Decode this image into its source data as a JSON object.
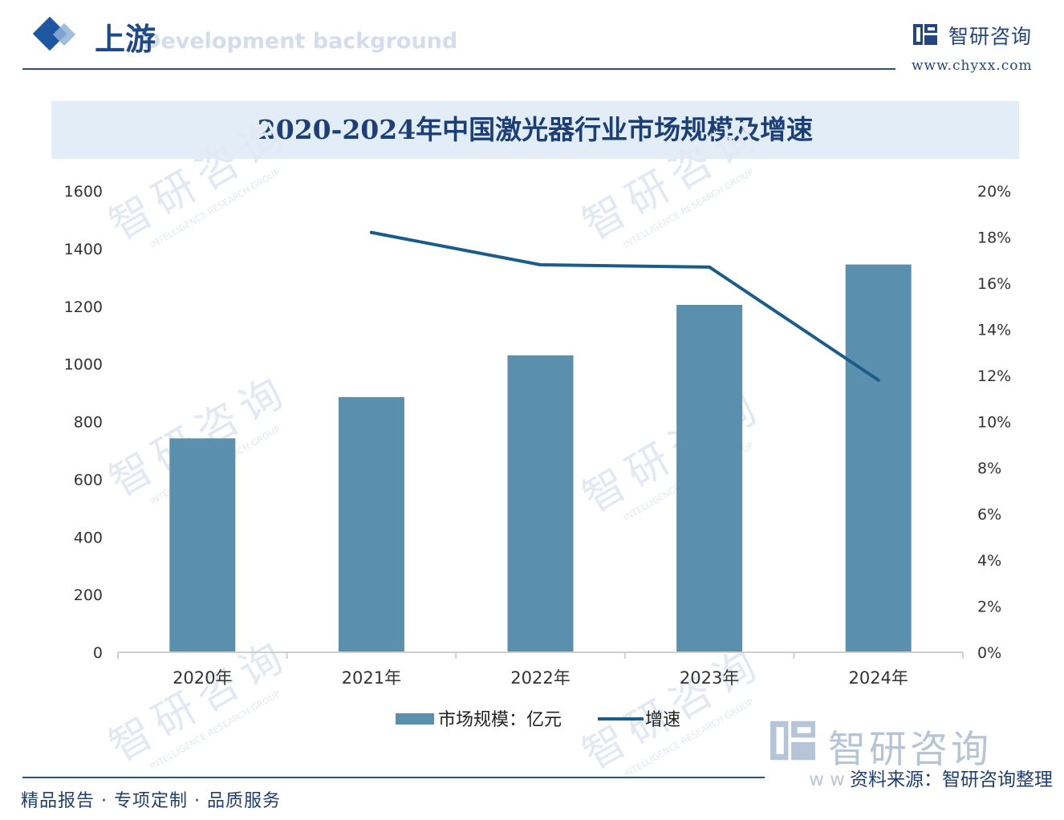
{
  "header": {
    "section_title": "上游",
    "section_subtitle": "Development background",
    "brand_name": "智研咨询",
    "brand_url": "www.chyxx.com"
  },
  "watermark": {
    "text": "智研咨询",
    "subtext": "INTELLIGENCE RESEARCH GROUP"
  },
  "chart_data": {
    "type": "bar",
    "title": "2020-2024年中国激光器行业市场规模及增速",
    "categories": [
      "2020年",
      "2021年",
      "2022年",
      "2023年",
      "2024年"
    ],
    "series": [
      {
        "name": "市场规模：亿元",
        "type": "bar",
        "axis": "left",
        "color": "#5b8fae",
        "values": [
          742,
          885,
          1030,
          1205,
          1345
        ]
      },
      {
        "name": "增速",
        "type": "line",
        "axis": "right",
        "color": "#1a5c8a",
        "values": [
          null,
          18.2,
          16.8,
          16.7,
          11.8
        ]
      }
    ],
    "y_left": {
      "min": 0,
      "max": 1600,
      "step": 200,
      "ticks": [
        "0",
        "200",
        "400",
        "600",
        "800",
        "1000",
        "1200",
        "1400",
        "1600"
      ]
    },
    "y_right": {
      "min": 0,
      "max": 20,
      "step": 2,
      "ticks": [
        "0%",
        "2%",
        "4%",
        "6%",
        "8%",
        "10%",
        "12%",
        "14%",
        "16%",
        "18%",
        "20%"
      ]
    },
    "legend": {
      "position": "bottom"
    },
    "grid": false
  },
  "footer": {
    "tagline": "精品报告 · 专项定制 · 品质服务",
    "source_prefix": "w w",
    "source": "资料来源：智研咨询整理",
    "brand_text": "智研咨询"
  }
}
